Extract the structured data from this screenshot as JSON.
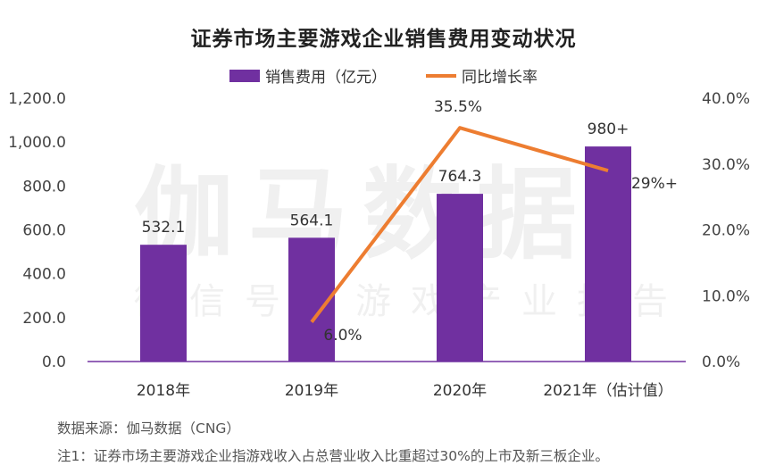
{
  "chart_data": {
    "type": "bar",
    "title": "证券市场主要游戏企业销售费用变动状况",
    "categories": [
      "2018年",
      "2019年",
      "2020年",
      "2021年（估计值）"
    ],
    "series": [
      {
        "name": "销售费用（亿元）",
        "type": "bar",
        "axis": "left",
        "values": [
          532.1,
          564.1,
          764.3,
          980
        ],
        "labels": [
          "532.1",
          "564.1",
          "764.3",
          "980+"
        ],
        "color": "#7030a0"
      },
      {
        "name": "同比增长率",
        "type": "line",
        "axis": "right",
        "values": [
          null,
          6.0,
          35.5,
          29
        ],
        "labels": [
          "",
          "6.0%",
          "35.5%",
          "29%+"
        ],
        "color": "#ed7d31"
      }
    ],
    "left_axis": {
      "ylim": [
        0,
        1200
      ],
      "ticks": [
        "0.0",
        "200.0",
        "400.0",
        "600.0",
        "800.0",
        "1,000.0",
        "1,200.0"
      ]
    },
    "right_axis": {
      "ylim": [
        0,
        40
      ],
      "ticks": [
        "0.0%",
        "10.0%",
        "20.0%",
        "30.0%",
        "40.0%"
      ]
    },
    "legend_position": "top-center",
    "grid": false
  },
  "watermark": {
    "main": "伽马数据",
    "sub": "微信号：游戏产业报告"
  },
  "footnotes": {
    "source": "数据来源：伽马数据（CNG）",
    "note": "注1：证券市场主要游戏企业指游戏收入占总营业收入比重超过30%的上市及新三板企业。"
  }
}
